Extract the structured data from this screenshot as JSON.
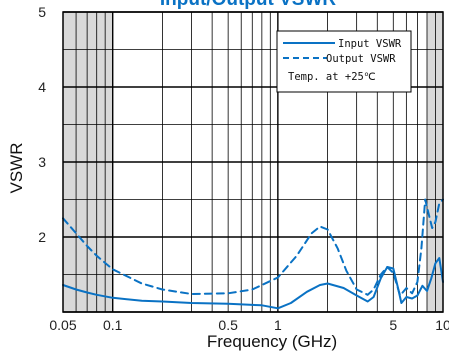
{
  "chart_data": {
    "type": "line",
    "title": "Input/Output VSWR",
    "xlabel": "Frequency (GHz)",
    "ylabel": "VSWR",
    "x_scale": "log",
    "xlim": [
      0.05,
      10
    ],
    "ylim": [
      1,
      5
    ],
    "x_tick_labels": [
      {
        "value": 0.05,
        "label": "0.05"
      },
      {
        "value": 0.1,
        "label": "0.1"
      },
      {
        "value": 0.5,
        "label": "0.5"
      },
      {
        "value": 1,
        "label": "1"
      },
      {
        "value": 5,
        "label": "5"
      },
      {
        "value": 10,
        "label": "10"
      }
    ],
    "y_ticks": [
      1,
      2,
      3,
      4,
      5
    ],
    "y_tick_labels": [
      "",
      "2",
      "3",
      "4",
      "5"
    ],
    "grid": true,
    "shaded_x_ranges": [
      [
        0.05,
        0.1
      ],
      [
        8,
        10
      ]
    ],
    "legend": {
      "position": "top-right",
      "entries": [
        "Input VSWR",
        "Output VSWR"
      ],
      "note": "Temp. at +25℃"
    },
    "colors": {
      "series": "#0a72c4",
      "grid": "#000000",
      "shade": "#d9d9d9"
    },
    "series": [
      {
        "name": "Input VSWR",
        "style": "solid",
        "x": [
          0.05,
          0.06,
          0.07,
          0.08,
          0.1,
          0.15,
          0.2,
          0.3,
          0.5,
          0.8,
          1.0,
          1.2,
          1.5,
          1.8,
          2.0,
          2.5,
          3.0,
          3.5,
          3.8,
          4.2,
          4.6,
          5.0,
          5.3,
          5.6,
          6.0,
          6.5,
          7.0,
          7.5,
          8.0,
          8.5,
          9.0,
          9.5,
          10.0
        ],
        "y": [
          1.36,
          1.3,
          1.26,
          1.23,
          1.19,
          1.15,
          1.14,
          1.12,
          1.11,
          1.09,
          1.05,
          1.12,
          1.27,
          1.36,
          1.38,
          1.32,
          1.22,
          1.14,
          1.2,
          1.45,
          1.6,
          1.58,
          1.35,
          1.12,
          1.2,
          1.18,
          1.22,
          1.35,
          1.28,
          1.45,
          1.65,
          1.72,
          1.4
        ]
      },
      {
        "name": "Output VSWR",
        "style": "dashed",
        "x": [
          0.05,
          0.06,
          0.07,
          0.08,
          0.1,
          0.15,
          0.2,
          0.3,
          0.5,
          0.7,
          1.0,
          1.3,
          1.6,
          1.8,
          2.0,
          2.3,
          2.6,
          3.0,
          3.5,
          3.8,
          4.2,
          4.6,
          5.0,
          5.5,
          6.0,
          6.5,
          7.0,
          7.4,
          7.8,
          8.2,
          8.6,
          9.0,
          9.5,
          10.0
        ],
        "y": [
          2.25,
          2.05,
          1.88,
          1.75,
          1.57,
          1.38,
          1.3,
          1.24,
          1.25,
          1.3,
          1.46,
          1.75,
          2.05,
          2.14,
          2.1,
          1.85,
          1.55,
          1.3,
          1.23,
          1.3,
          1.5,
          1.6,
          1.52,
          1.22,
          1.32,
          1.25,
          1.4,
          1.85,
          2.5,
          2.3,
          2.12,
          2.2,
          2.45,
          2.5
        ]
      }
    ]
  }
}
